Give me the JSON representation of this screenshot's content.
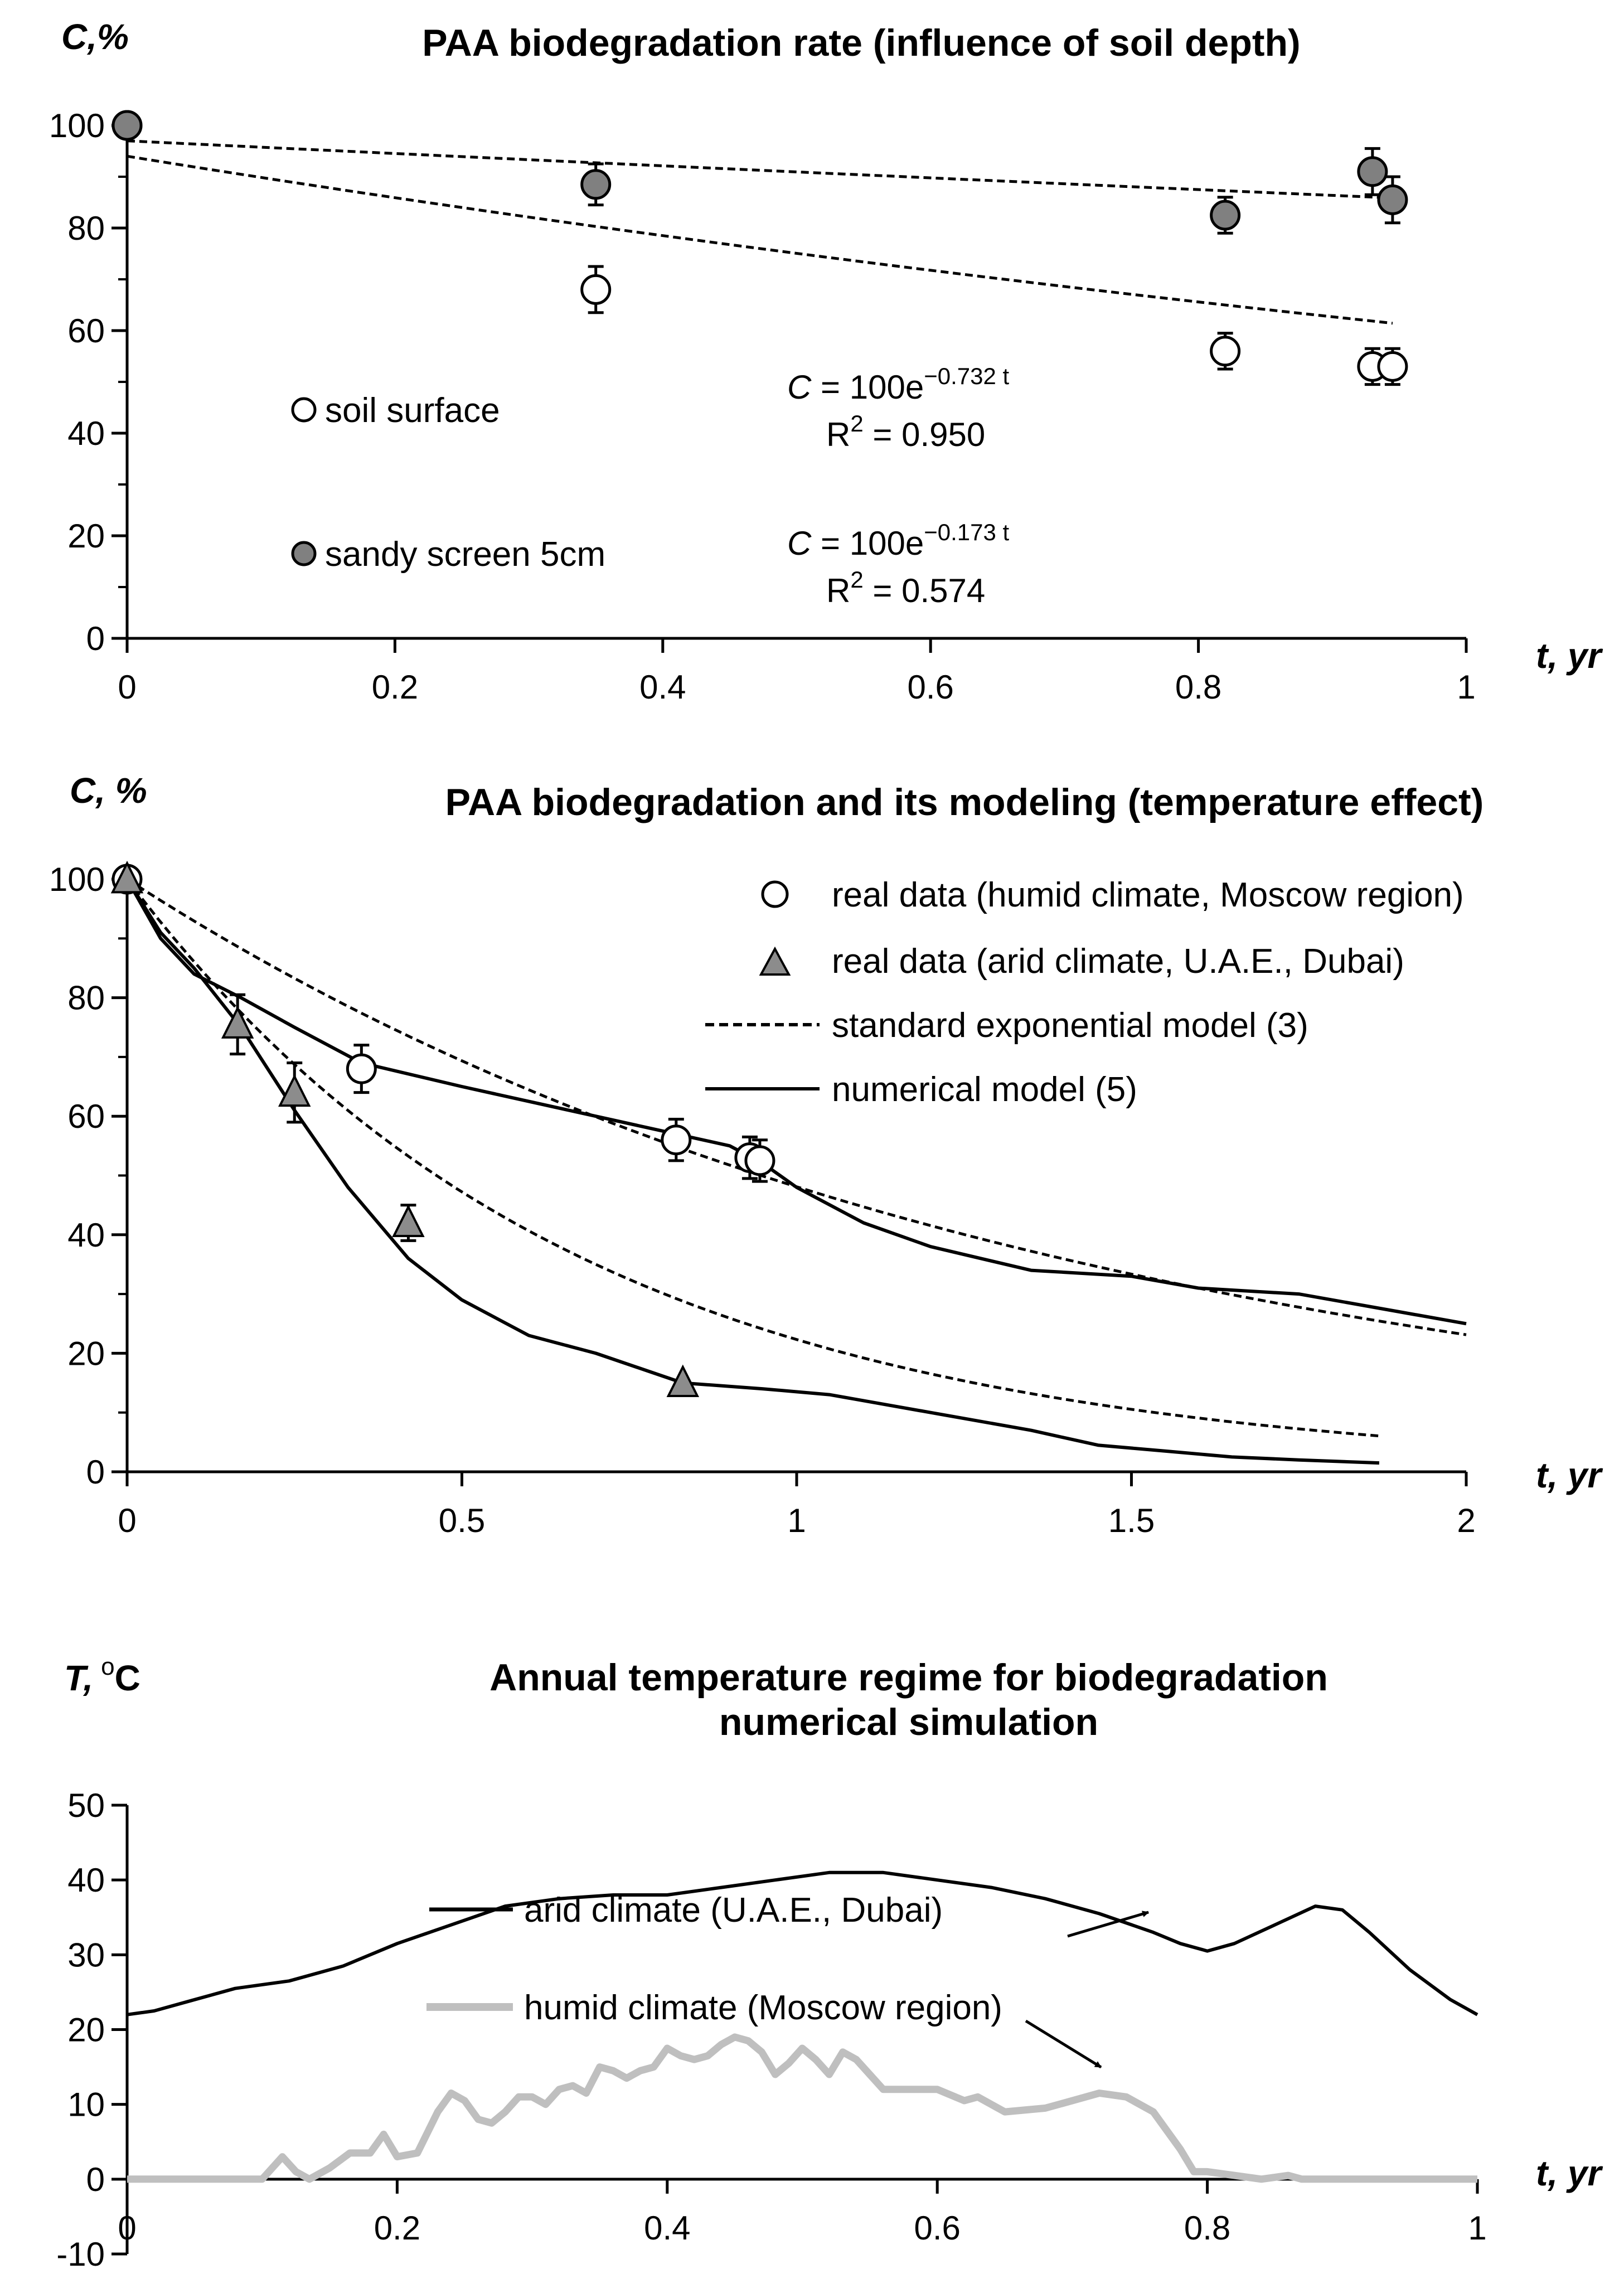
{
  "chart_data": [
    {
      "type": "scatter",
      "title": "PAA biodegradation rate (influence of soil depth)",
      "ylabel": "C,%",
      "xlabel": "t, yr",
      "xlim": [
        0,
        1
      ],
      "ylim": [
        0,
        100
      ],
      "xticks": [
        "0",
        "0.2",
        "0.4",
        "0.6",
        "0.8",
        "1"
      ],
      "yticks": [
        "0",
        "20",
        "40",
        "60",
        "80",
        "100"
      ],
      "grid": false,
      "legend_position": "left-inside",
      "series": [
        {
          "name": "soil surface",
          "marker": "circle-open",
          "x": [
            0,
            0.35,
            0.82,
            0.93,
            0.945
          ],
          "y": [
            100,
            68,
            56,
            53,
            53
          ],
          "err": [
            0,
            4.5,
            3.5,
            3.5,
            3.5
          ],
          "fit": {
            "a": 94,
            "b": 0.45
          },
          "eq_main": "C = 100e",
          "eq_exp": "−0.732 t",
          "r2_label": "R",
          "r2_sup": "2",
          "r2_value": " = 0.950"
        },
        {
          "name": "sandy screen 5cm",
          "marker": "circle-filled",
          "color": "#808080",
          "x": [
            0,
            0.35,
            0.82,
            0.93,
            0.945
          ],
          "y": [
            100,
            88.5,
            82.5,
            91,
            85.5
          ],
          "err": [
            0,
            4,
            3.5,
            4.5,
            4.5
          ],
          "fit": {
            "a": 97,
            "b": 0.129
          },
          "eq_main": "C = 100e",
          "eq_exp": "−0.173 t",
          "r2_label": "R",
          "r2_sup": "2",
          "r2_value": " = 0.574"
        }
      ]
    },
    {
      "type": "line",
      "title": "PAA biodegradation and its modeling (temperature effect)",
      "ylabel": "C, %",
      "xlabel": "t, yr",
      "xlim": [
        0,
        2
      ],
      "ylim": [
        0,
        100
      ],
      "xticks": [
        "0",
        "0.5",
        "1",
        "1.5",
        "2"
      ],
      "yticks": [
        "0",
        "20",
        "40",
        "60",
        "80",
        "100"
      ],
      "grid": false,
      "legend_position": "top-right",
      "legend": [
        "real data (humid climate, Moscow region)",
        "real data (arid climate, U.A.E., Dubai)",
        "standard exponential model (3)",
        "numerical model (5)"
      ],
      "real_humid": {
        "x": [
          0,
          0.35,
          0.82,
          0.93,
          0.945
        ],
        "y": [
          100,
          68,
          56,
          53,
          52.5
        ],
        "err": [
          0,
          4,
          3.5,
          3.5,
          3.5
        ]
      },
      "real_arid": {
        "color": "#8c8c8c",
        "x": [
          0,
          0.165,
          0.25,
          0.42,
          0.83
        ],
        "y": [
          100,
          75.5,
          64,
          42,
          15
        ],
        "err": [
          0,
          5,
          5,
          3,
          0
        ]
      },
      "exp_humid": {
        "rate": 0.732,
        "xmax": 2
      },
      "exp_arid": {
        "rate": 1.5,
        "xmax": 1.87
      },
      "num_humid": {
        "x": [
          0,
          0.05,
          0.1,
          0.17,
          0.25,
          0.35,
          0.5,
          0.7,
          0.82,
          0.9,
          0.95,
          1.0,
          1.1,
          1.2,
          1.35,
          1.5,
          1.6,
          1.75,
          1.9,
          2.0
        ],
        "y": [
          100,
          90,
          84,
          80,
          75,
          69,
          65,
          60,
          57,
          55,
          52,
          48,
          42,
          38,
          34,
          33,
          31,
          30,
          27,
          25
        ]
      },
      "num_arid": {
        "x": [
          0,
          0.05,
          0.1,
          0.17,
          0.25,
          0.33,
          0.42,
          0.5,
          0.6,
          0.7,
          0.83,
          0.95,
          1.05,
          1.2,
          1.35,
          1.45,
          1.55,
          1.65,
          1.75,
          1.87
        ],
        "y": [
          100,
          91,
          85,
          75,
          61,
          48,
          36,
          29,
          23,
          20,
          15,
          14,
          13,
          10,
          7,
          4.5,
          3.5,
          2.5,
          2,
          1.5
        ]
      }
    },
    {
      "type": "line",
      "title": "Annual temperature regime for biodegradation",
      "title_line2": "numerical simulation",
      "ylabel_main": "T,",
      "ylabel_unit": "C",
      "ylabel_sup": "o",
      "xlabel": "t, yr",
      "xlim": [
        0,
        1
      ],
      "ylim": [
        -10,
        50
      ],
      "xticks": [
        "0",
        "0.2",
        "0.4",
        "0.6",
        "0.8",
        "1"
      ],
      "yticks": [
        "-10",
        "0",
        "10",
        "20",
        "30",
        "40",
        "50"
      ],
      "grid": false,
      "series": [
        {
          "name": "arid climate (U.A.E., Dubai)",
          "color": "#000000",
          "x": [
            0,
            0.02,
            0.05,
            0.08,
            0.12,
            0.16,
            0.2,
            0.24,
            0.28,
            0.32,
            0.36,
            0.4,
            0.44,
            0.48,
            0.52,
            0.56,
            0.6,
            0.64,
            0.68,
            0.72,
            0.76,
            0.78,
            0.8,
            0.82,
            0.85,
            0.88,
            0.9,
            0.92,
            0.95,
            0.98,
            1.0
          ],
          "y": [
            22,
            22.5,
            24,
            25.5,
            26.5,
            28.5,
            31.5,
            34,
            36.5,
            37.5,
            38,
            38,
            39,
            40,
            41,
            41,
            40,
            39,
            37.5,
            35.5,
            33,
            31.5,
            30.5,
            31.5,
            34,
            36.5,
            36,
            33,
            28,
            24,
            22
          ]
        },
        {
          "name": "humid climate (Moscow region)",
          "color": "#bfbfbf",
          "x": [
            0,
            0.05,
            0.1,
            0.115,
            0.125,
            0.135,
            0.15,
            0.165,
            0.18,
            0.19,
            0.2,
            0.215,
            0.23,
            0.24,
            0.25,
            0.26,
            0.27,
            0.28,
            0.29,
            0.3,
            0.31,
            0.32,
            0.33,
            0.34,
            0.35,
            0.36,
            0.37,
            0.38,
            0.39,
            0.4,
            0.41,
            0.42,
            0.43,
            0.44,
            0.45,
            0.46,
            0.47,
            0.48,
            0.49,
            0.5,
            0.51,
            0.52,
            0.53,
            0.54,
            0.55,
            0.56,
            0.57,
            0.58,
            0.6,
            0.62,
            0.63,
            0.65,
            0.68,
            0.7,
            0.72,
            0.74,
            0.76,
            0.78,
            0.79,
            0.8,
            0.82,
            0.84,
            0.86,
            0.87,
            0.9,
            1.0
          ],
          "y": [
            0,
            0,
            0,
            3,
            1,
            0,
            1.5,
            3.5,
            3.5,
            6,
            3,
            3.5,
            9,
            11.5,
            10.5,
            8,
            7.5,
            9,
            11,
            11,
            10,
            12,
            12.5,
            11.5,
            15,
            14.5,
            13.5,
            14.5,
            15,
            17.5,
            16.5,
            16,
            16.5,
            18,
            19,
            18.5,
            17,
            14,
            15.5,
            17.5,
            16,
            14,
            17,
            16,
            14,
            12,
            12,
            12,
            12,
            10.5,
            11,
            9,
            9.5,
            10.5,
            11.5,
            11,
            9,
            4,
            1,
            1,
            0.5,
            0,
            0.5,
            0,
            0,
            0
          ]
        }
      ]
    }
  ]
}
